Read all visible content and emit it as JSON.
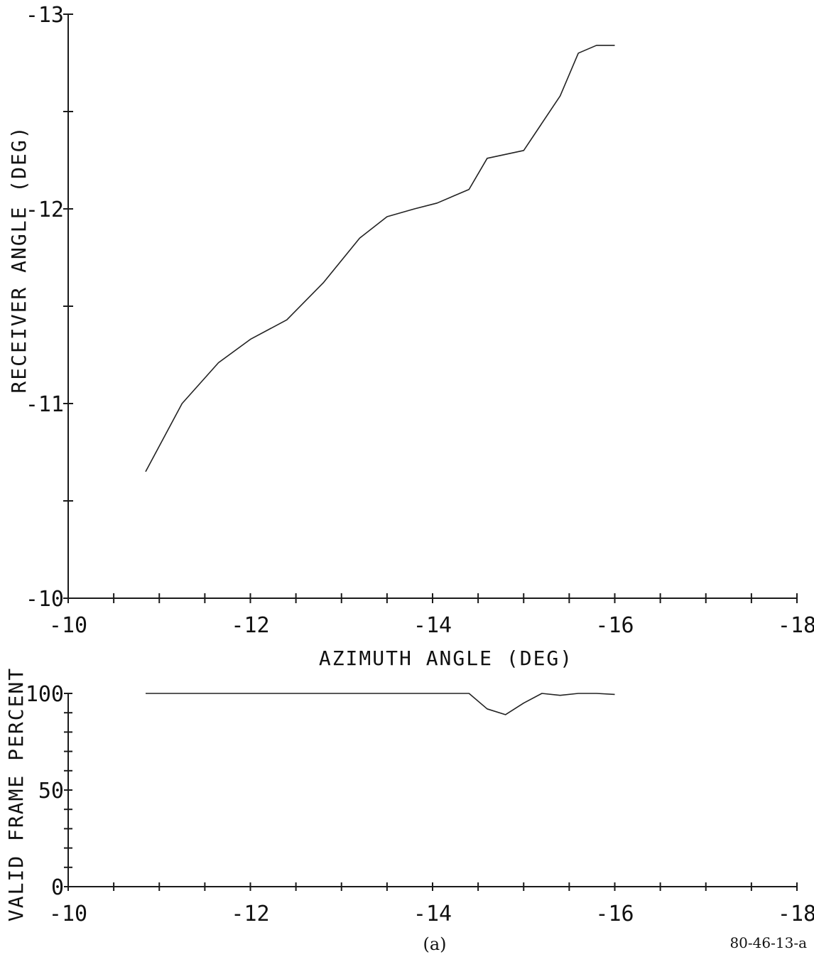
{
  "chart_data": [
    {
      "type": "line",
      "id": "receiver",
      "title": "",
      "xlabel": "AZIMUTH ANGLE (DEG)",
      "ylabel": "RECEIVER ANGLE (DEG)",
      "xlim": [
        -10,
        -18
      ],
      "ylim": [
        -10,
        -13
      ],
      "xticks": [
        -10,
        -10.5,
        -11,
        -11.5,
        -12,
        -12.5,
        -13,
        -13.5,
        -14,
        -14.5,
        -15,
        -15.5,
        -16,
        -16.5,
        -17,
        -17.5,
        -18
      ],
      "xtick_labels": [
        "-10",
        "-12",
        "-14",
        "-16",
        "-18"
      ],
      "xtick_label_values": [
        -10,
        -12,
        -14,
        -16,
        -18
      ],
      "yticks": [
        -10,
        -10.5,
        -11,
        -11.5,
        -12,
        -12.5,
        -13
      ],
      "ytick_labels": [
        "-10",
        "-11",
        "-12",
        "-13"
      ],
      "ytick_label_values": [
        -10,
        -11,
        -12,
        -13
      ],
      "grid": false,
      "series": [
        {
          "x": [
            -10.85,
            -11.25,
            -11.65,
            -12.0,
            -12.4,
            -12.8,
            -13.2,
            -13.5,
            -13.8,
            -14.05,
            -14.4,
            -14.6,
            -14.8,
            -15.0,
            -15.4,
            -15.6,
            -15.8,
            -16.0
          ],
          "y": [
            -10.65,
            -11.0,
            -11.21,
            -11.33,
            -11.43,
            -11.62,
            -11.85,
            -11.96,
            -12.0,
            -12.03,
            -12.1,
            -12.26,
            -12.28,
            -12.3,
            -12.58,
            -12.8,
            -12.84,
            -12.84
          ]
        }
      ]
    },
    {
      "type": "line",
      "id": "valid_frame",
      "title": "",
      "xlabel": "",
      "ylabel": "VALID FRAME PERCENT",
      "xlim": [
        -10,
        -18
      ],
      "ylim": [
        0,
        100
      ],
      "xticks": [
        -10,
        -10.5,
        -11,
        -11.5,
        -12,
        -12.5,
        -13,
        -13.5,
        -14,
        -14.5,
        -15,
        -15.5,
        -16,
        -16.5,
        -17,
        -17.5,
        -18
      ],
      "xtick_labels": [
        "-10",
        "-12",
        "-14",
        "-16",
        "-18"
      ],
      "xtick_label_values": [
        -10,
        -12,
        -14,
        -16,
        -18
      ],
      "yticks": [
        0,
        10,
        20,
        30,
        40,
        50,
        60,
        70,
        80,
        90,
        100
      ],
      "ytick_labels": [
        "0",
        "50",
        "100"
      ],
      "ytick_label_values": [
        0,
        50,
        100
      ],
      "grid": false,
      "series": [
        {
          "x": [
            -10.85,
            -11.5,
            -12.0,
            -12.5,
            -13.0,
            -13.5,
            -14.0,
            -14.4,
            -14.6,
            -14.8,
            -15.0,
            -15.2,
            -15.4,
            -15.6,
            -15.8,
            -16.0
          ],
          "y": [
            100,
            100,
            100,
            100,
            100,
            100,
            100,
            100,
            92,
            89,
            95,
            100,
            99,
            100,
            100,
            99.5
          ]
        }
      ]
    }
  ],
  "figure": {
    "caption": "(a)",
    "reference": "80-46-13-a"
  }
}
